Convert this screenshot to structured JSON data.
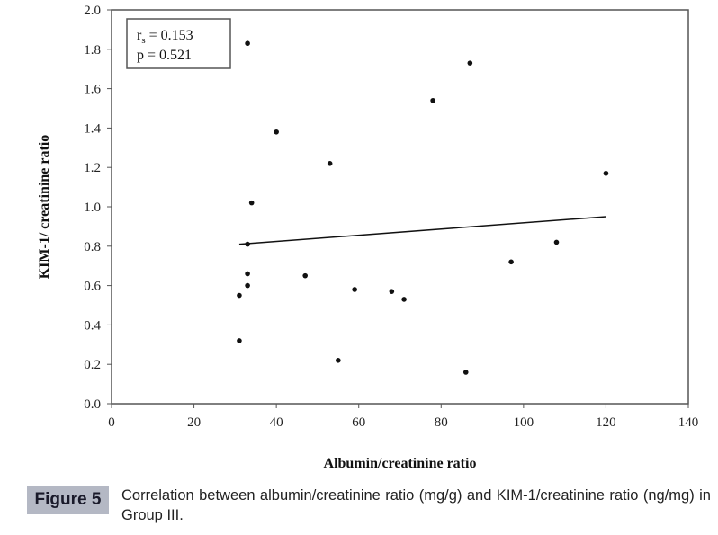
{
  "chart_data": {
    "type": "scatter",
    "title": "",
    "xlabel": "Albumin/creatinine ratio",
    "ylabel": "KIM-1/ creatinine ratio",
    "xlim": [
      0,
      140
    ],
    "ylim": [
      0,
      2.0
    ],
    "xticks": [
      "0",
      "20",
      "40",
      "60",
      "80",
      "100",
      "120",
      "140"
    ],
    "yticks": [
      "0.0",
      "0.2",
      "0.4",
      "0.6",
      "0.8",
      "1.0",
      "1.2",
      "1.4",
      "1.6",
      "1.8",
      "2.0"
    ],
    "grid": false,
    "points": [
      [
        33,
        1.83
      ],
      [
        40,
        1.38
      ],
      [
        53,
        1.22
      ],
      [
        34,
        1.02
      ],
      [
        33,
        0.81
      ],
      [
        33,
        0.66
      ],
      [
        33,
        0.6
      ],
      [
        31,
        0.55
      ],
      [
        31,
        0.32
      ],
      [
        47,
        0.65
      ],
      [
        55,
        0.22
      ],
      [
        59,
        0.58
      ],
      [
        68,
        0.57
      ],
      [
        71,
        0.53
      ],
      [
        78,
        1.54
      ],
      [
        87,
        1.73
      ],
      [
        86,
        0.16
      ],
      [
        97,
        0.72
      ],
      [
        108,
        0.82
      ],
      [
        120,
        1.17
      ]
    ],
    "trendline": {
      "x": [
        31,
        120
      ],
      "y": [
        0.81,
        0.95
      ]
    },
    "annotation": {
      "rs_label": "r",
      "rs_sub": "s",
      "rs_value": " = 0.153",
      "p_text": "p = 0.521",
      "placement": "top-left"
    }
  },
  "figure": {
    "tag": "Figure 5",
    "caption": "Correlation between albumin/creatinine ratio (mg/g) and KIM-1/creatinine ratio (ng/mg) in Group III."
  }
}
